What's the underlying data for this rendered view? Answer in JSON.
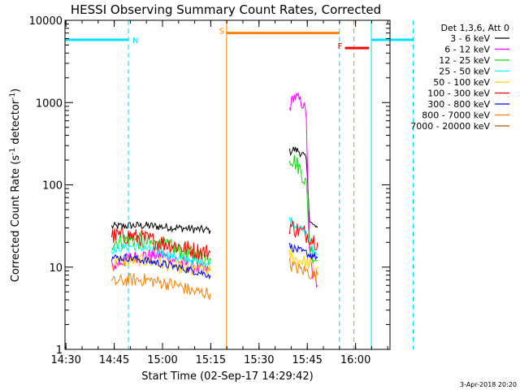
{
  "chart_data": {
    "type": "line",
    "title": "HESSI Observing Summary Count Rates, Corrected",
    "xlabel": "Start Time (02-Sep-17 14:29:42)",
    "ylabel": "Corrected Count Rate (s",
    "ylabel_sup1": "-1",
    "ylabel_mid": " detector",
    "ylabel_sup2": "-1",
    "ylabel_end": ")",
    "yscale": "log",
    "ylim": [
      1,
      10000
    ],
    "xlim": [
      "14:29:42",
      "16:10:42"
    ],
    "x_ticks": [
      {
        "label": "14:30",
        "t": 0.3
      },
      {
        "label": "14:45",
        "t": 15.3
      },
      {
        "label": "15:00",
        "t": 30.3
      },
      {
        "label": "15:15",
        "t": 45.3
      },
      {
        "label": "15:30",
        "t": 60.3
      },
      {
        "label": "15:45",
        "t": 75.3
      },
      {
        "label": "16:00",
        "t": 90.3
      }
    ],
    "y_ticks": [
      {
        "label": "1",
        "v": 1
      },
      {
        "label": "10",
        "v": 10
      },
      {
        "label": "100",
        "v": 100
      },
      {
        "label": "1000",
        "v": 1000
      },
      {
        "label": "10000",
        "v": 10000
      }
    ],
    "legend_header": "Det 1,3,6, Att 0",
    "legend_placement": "top-right outside",
    "series": [
      {
        "name": "3 - 6 keV",
        "color": "#000000",
        "segments": [
          {
            "x": [
              14.5,
              20,
              25,
              30,
              35,
              40,
              45.2
            ],
            "y": [
              31,
              32,
              32,
              31,
              30,
              29,
              28
            ]
          },
          {
            "x": [
              69.8,
              71,
              72.5,
              74,
              75,
              76,
              77,
              78.5
            ],
            "y": [
              250,
              270,
              260,
              230,
              200,
              40,
              32,
              30
            ]
          }
        ]
      },
      {
        "name": "6 - 12 keV",
        "color": "#ff00ff",
        "segments": [
          {
            "x": [
              14.5,
              20,
              25,
              30,
              35,
              40,
              45.2
            ],
            "y": [
              10,
              13,
              14,
              14,
              12,
              10,
              9
            ]
          },
          {
            "x": [
              69.8,
              71,
              72.5,
              74,
              75,
              76,
              77,
              78.5
            ],
            "y": [
              850,
              1200,
              1100,
              950,
              700,
              15,
              8,
              6
            ]
          }
        ]
      },
      {
        "name": "12 - 25 keV",
        "color": "#00e000",
        "segments": [
          {
            "x": [
              14.5,
              20,
              25,
              30,
              35,
              40,
              45.2
            ],
            "y": [
              20,
              22,
              20,
              18,
              16,
              14,
              13
            ]
          },
          {
            "x": [
              69.8,
              71,
              72.5,
              74,
              75,
              76,
              77,
              78.5
            ],
            "y": [
              220,
              200,
              170,
              130,
              100,
              20,
              14,
              12
            ]
          }
        ]
      },
      {
        "name": "25 - 50 keV",
        "color": "#00ffff",
        "segments": [
          {
            "x": [
              14.5,
              20,
              25,
              30,
              35,
              40,
              45.2
            ],
            "y": [
              16,
              18,
              17,
              15,
              13,
              12,
              11
            ]
          },
          {
            "x": [
              69.8,
              71,
              72.5,
              74,
              75,
              76,
              77,
              78.5
            ],
            "y": [
              40,
              34,
              30,
              28,
              26,
              22,
              16,
              14
            ]
          }
        ]
      },
      {
        "name": "50 - 100 keV",
        "color": "#ffd000",
        "segments": [
          {
            "x": [
              14.5,
              20,
              25,
              30,
              35,
              40,
              45.2
            ],
            "y": [
              11,
              12,
              12,
              11,
              10,
              9,
              9
            ]
          },
          {
            "x": [
              69.8,
              71,
              72.5,
              74,
              75,
              76,
              77,
              78.5
            ],
            "y": [
              14,
              13,
              12,
              12,
              11,
              11,
              10,
              10
            ]
          }
        ]
      },
      {
        "name": "100 - 300 keV",
        "color": "#ff0000",
        "segments": [
          {
            "x": [
              14.5,
              20,
              25,
              30,
              35,
              40,
              45.2
            ],
            "y": [
              24,
              24,
              22,
              20,
              18,
              16,
              15
            ]
          },
          {
            "x": [
              69.8,
              71,
              72.5,
              74,
              75,
              76,
              77,
              78.5
            ],
            "y": [
              32,
              30,
              28,
              26,
              25,
              24,
              22,
              20
            ]
          }
        ]
      },
      {
        "name": "300 - 800 keV",
        "color": "#0000ff",
        "segments": [
          {
            "x": [
              14.5,
              20,
              25,
              30,
              35,
              40,
              45.2
            ],
            "y": [
              13,
              13,
              12,
              11,
              10,
              9,
              8
            ]
          },
          {
            "x": [
              69.8,
              71,
              72.5,
              74,
              75,
              76,
              77,
              78.5
            ],
            "y": [
              18,
              17,
              16,
              15,
              15,
              14,
              14,
              13
            ]
          }
        ]
      },
      {
        "name": "800 - 7000 keV",
        "color": "#ff8000",
        "segments": [
          {
            "x": [
              14.5,
              20,
              25,
              30,
              35,
              40,
              45.2
            ],
            "y": [
              6.5,
              7,
              7,
              6.5,
              6,
              5,
              4.8
            ]
          },
          {
            "x": [
              69.8,
              71,
              72.5,
              74,
              75,
              76,
              77,
              78.5
            ],
            "y": [
              11,
              10,
              9.5,
              9,
              9,
              8.5,
              8,
              8
            ]
          }
        ]
      },
      {
        "name": "7000 - 20000 keV",
        "color": "#a06000",
        "segments": []
      }
    ],
    "flag_lines": [
      {
        "t": 0.0,
        "color": "#00e0ff",
        "dash": false
      },
      {
        "t": 19.7,
        "color": "#00e0ff",
        "dash": true
      },
      {
        "t": 50.2,
        "color": "#ff8000",
        "dash": false
      },
      {
        "t": 85.3,
        "color": "#00e0ff",
        "dash": true
      },
      {
        "t": 89.8,
        "color": "#ff8000",
        "dash": true
      },
      {
        "t": 95.2,
        "color": "#00e0ff",
        "dash": false
      },
      {
        "t": 108.2,
        "color": "#00e0ff",
        "dash": true
      }
    ],
    "flag_bars": [
      {
        "label": "N",
        "color": "#00e0ff",
        "x0": 0.0,
        "x1": 19.7,
        "level": 5800
      },
      {
        "label": "S",
        "color": "#ff8000",
        "x0": 50.2,
        "x1": 85.3,
        "level": 7000
      },
      {
        "label": "F",
        "color": "#ff0000",
        "x0": 87.0,
        "x1": 94.5,
        "level": 4600
      },
      {
        "label": "",
        "color": "#00e0ff",
        "x0": 95.2,
        "x1": 108.2,
        "level": 5800
      }
    ],
    "footer_date": "3-Apr-2018 20:20"
  }
}
